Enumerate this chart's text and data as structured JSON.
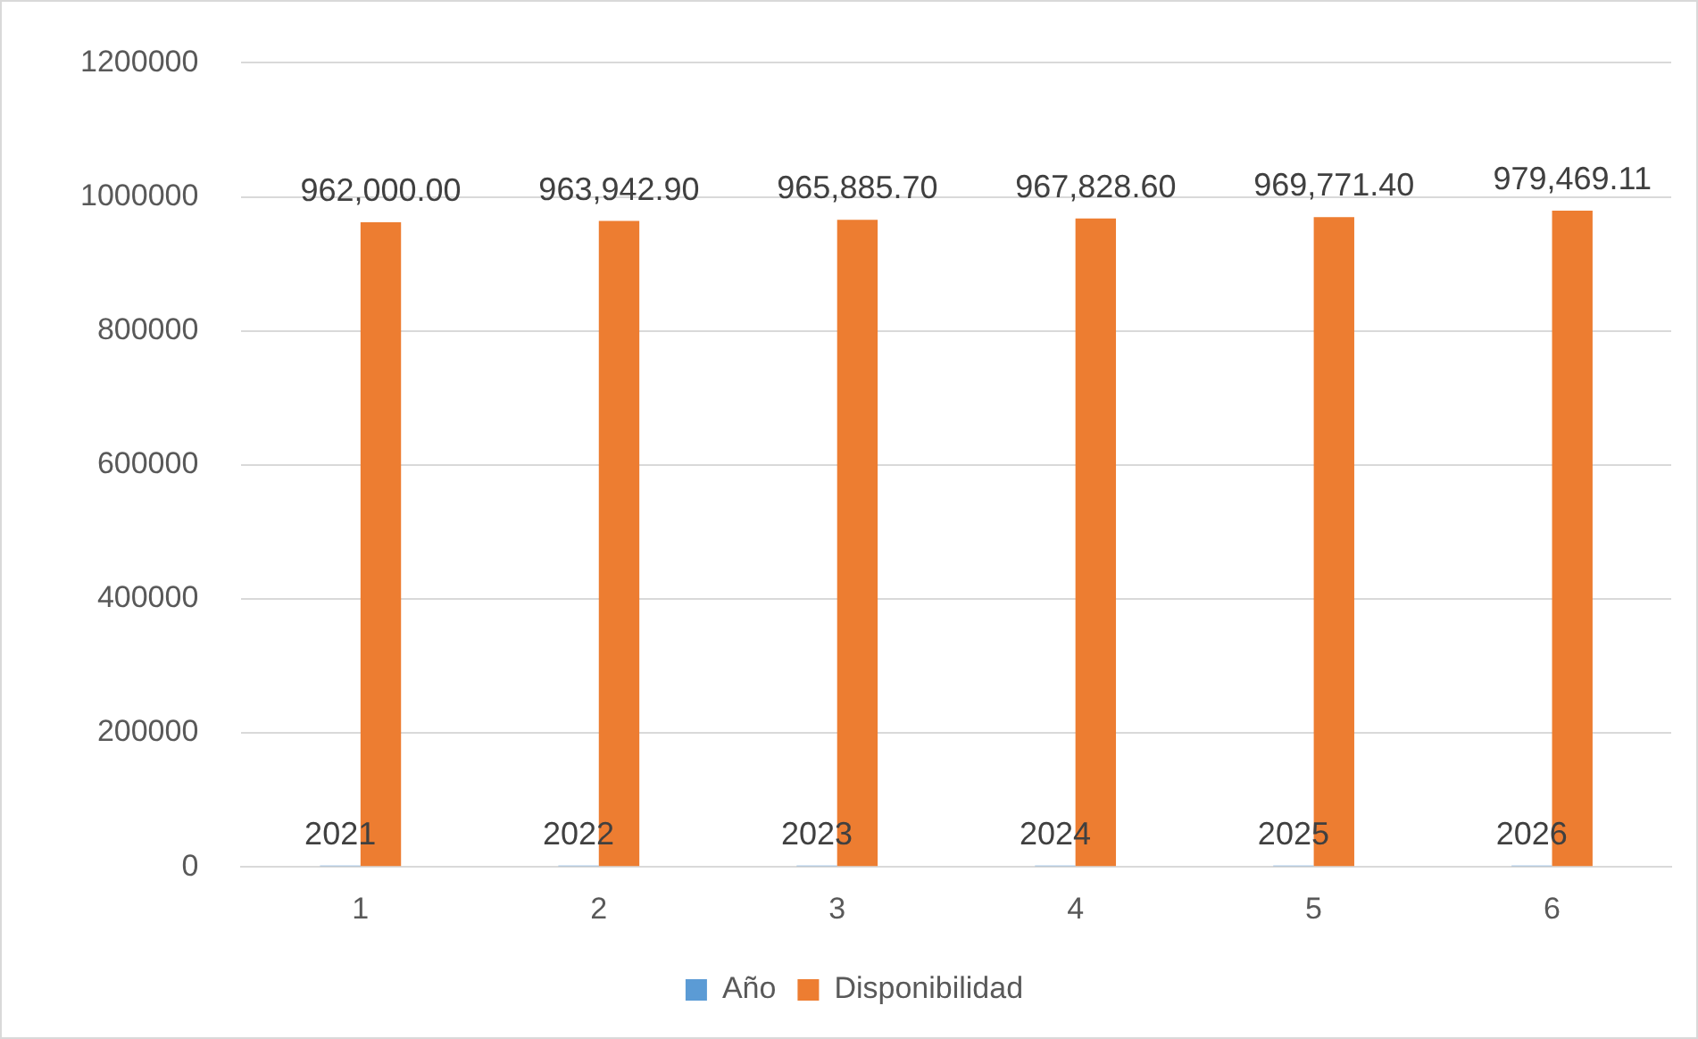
{
  "chart_data": {
    "type": "bar",
    "categories": [
      "1",
      "2",
      "3",
      "4",
      "5",
      "6"
    ],
    "series": [
      {
        "name": "Año",
        "color": "#5b9bd5",
        "values": [
          2021,
          2022,
          2023,
          2024,
          2025,
          2026
        ],
        "value_labels": [
          "2021",
          "2022",
          "2023",
          "2024",
          "2025",
          "2026"
        ]
      },
      {
        "name": "Disponibilidad",
        "color": "#ed7d31",
        "values": [
          962000,
          963942.9,
          965885.7,
          967828.6,
          969771.4,
          979469.11
        ],
        "value_labels": [
          "962,000.00",
          "963,942.90",
          "965,885.70",
          "967,828.60",
          "969,771.40",
          "979,469.11"
        ]
      }
    ],
    "ylim": [
      0,
      1200000
    ],
    "yticks": [
      0,
      200000,
      400000,
      600000,
      800000,
      1000000,
      1200000
    ],
    "grid": "y",
    "legend": "bottom"
  }
}
